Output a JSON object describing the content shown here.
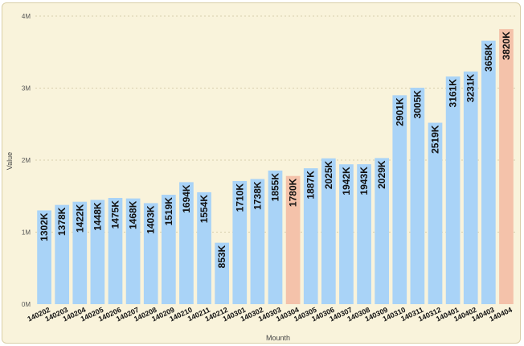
{
  "chart_data": {
    "type": "bar",
    "xlabel": "Mounth",
    "ylabel": "Value",
    "ylim": [
      0,
      4000
    ],
    "yticks": [
      {
        "value": 0,
        "label": "0M"
      },
      {
        "value": 1000,
        "label": "1M"
      },
      {
        "value": 2000,
        "label": "2M"
      },
      {
        "value": 3000,
        "label": "3M"
      },
      {
        "value": 4000,
        "label": "4M"
      }
    ],
    "grid": true,
    "categories": [
      "140202",
      "140203",
      "140204",
      "140205",
      "140206",
      "140207",
      "140208",
      "140209",
      "140210",
      "140211",
      "140212",
      "140301",
      "140302",
      "140303",
      "140304",
      "140305",
      "140306",
      "140307",
      "140308",
      "140309",
      "140310",
      "140311",
      "140312",
      "140401",
      "140402",
      "140403",
      "140404"
    ],
    "values": [
      1302,
      1378,
      1422,
      1448,
      1475,
      1468,
      1403,
      1519,
      1694,
      1554,
      853,
      1710,
      1738,
      1855,
      1780,
      1887,
      2025,
      1942,
      1943,
      2029,
      2901,
      3005,
      2519,
      3161,
      3231,
      3658,
      3820
    ],
    "data_labels": [
      "1302K",
      "1378K",
      "1422K",
      "1448K",
      "1475K",
      "1468K",
      "1403K",
      "1519K",
      "1694K",
      "1554K",
      "853K",
      "1710K",
      "1738K",
      "1855K",
      "1780K",
      "1887K",
      "2025K",
      "1942K",
      "1943K",
      "2029K",
      "2901K",
      "3005K",
      "2519K",
      "3161K",
      "3231K",
      "3658K",
      "3820K"
    ],
    "highlighted": [
      "140304",
      "140404"
    ],
    "colors": {
      "bar": "#a9d3f7",
      "highlight": "#f4c2aa",
      "background": "#f9f3db"
    }
  }
}
